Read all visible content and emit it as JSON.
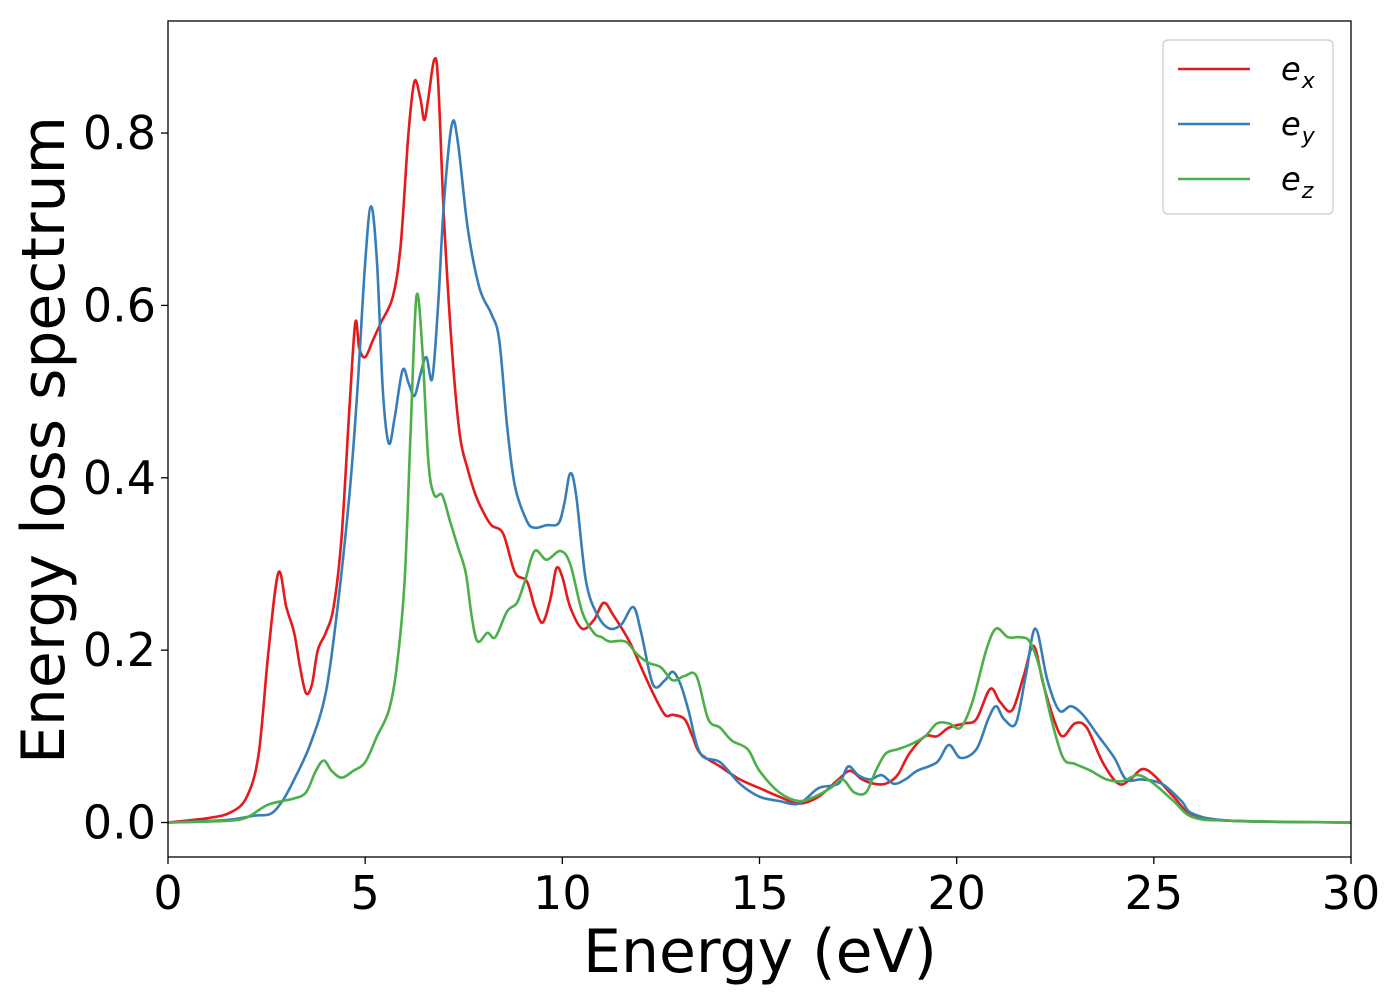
{
  "chart_data": {
    "type": "line",
    "title": "",
    "xlabel": "Energy (eV)",
    "ylabel": "Energy loss spectrum",
    "xlim": [
      0,
      30
    ],
    "ylim": [
      -0.04,
      0.93
    ],
    "xticks": [
      0,
      5,
      10,
      15,
      20,
      25,
      30
    ],
    "yticks": [
      0.0,
      0.2,
      0.4,
      0.6,
      0.8
    ],
    "xtick_labels": [
      "0",
      "5",
      "10",
      "15",
      "20",
      "25",
      "30"
    ],
    "ytick_labels": [
      "0.0",
      "0.2",
      "0.4",
      "0.6",
      "0.8"
    ],
    "grid": false,
    "legend_position": "top-right",
    "series": [
      {
        "name": "e",
        "subscript": "x",
        "color": "#e41a1c",
        "points": [
          [
            0,
            0.0
          ],
          [
            1.0,
            0.005
          ],
          [
            1.6,
            0.012
          ],
          [
            2.0,
            0.03
          ],
          [
            2.3,
            0.08
          ],
          [
            2.55,
            0.2
          ],
          [
            2.8,
            0.29
          ],
          [
            3.0,
            0.25
          ],
          [
            3.2,
            0.22
          ],
          [
            3.35,
            0.18
          ],
          [
            3.5,
            0.15
          ],
          [
            3.65,
            0.16
          ],
          [
            3.8,
            0.2
          ],
          [
            4.0,
            0.22
          ],
          [
            4.2,
            0.25
          ],
          [
            4.4,
            0.33
          ],
          [
            4.6,
            0.48
          ],
          [
            4.75,
            0.58
          ],
          [
            4.85,
            0.55
          ],
          [
            5.0,
            0.54
          ],
          [
            5.2,
            0.56
          ],
          [
            5.4,
            0.58
          ],
          [
            5.7,
            0.61
          ],
          [
            5.9,
            0.67
          ],
          [
            6.1,
            0.8
          ],
          [
            6.25,
            0.86
          ],
          [
            6.4,
            0.84
          ],
          [
            6.5,
            0.815
          ],
          [
            6.6,
            0.84
          ],
          [
            6.75,
            0.885
          ],
          [
            6.85,
            0.86
          ],
          [
            7.0,
            0.7
          ],
          [
            7.2,
            0.55
          ],
          [
            7.4,
            0.45
          ],
          [
            7.6,
            0.41
          ],
          [
            7.8,
            0.38
          ],
          [
            8.0,
            0.36
          ],
          [
            8.2,
            0.345
          ],
          [
            8.5,
            0.335
          ],
          [
            8.8,
            0.29
          ],
          [
            9.1,
            0.28
          ],
          [
            9.3,
            0.25
          ],
          [
            9.5,
            0.232
          ],
          [
            9.7,
            0.26
          ],
          [
            9.85,
            0.295
          ],
          [
            10.0,
            0.285
          ],
          [
            10.2,
            0.25
          ],
          [
            10.5,
            0.225
          ],
          [
            10.8,
            0.235
          ],
          [
            11.05,
            0.255
          ],
          [
            11.3,
            0.24
          ],
          [
            11.7,
            0.21
          ],
          [
            12.0,
            0.18
          ],
          [
            12.3,
            0.15
          ],
          [
            12.6,
            0.125
          ],
          [
            12.8,
            0.125
          ],
          [
            13.1,
            0.12
          ],
          [
            13.3,
            0.1
          ],
          [
            13.5,
            0.08
          ],
          [
            14.0,
            0.065
          ],
          [
            14.5,
            0.05
          ],
          [
            15.0,
            0.04
          ],
          [
            15.5,
            0.03
          ],
          [
            16.0,
            0.022
          ],
          [
            16.5,
            0.03
          ],
          [
            17.0,
            0.05
          ],
          [
            17.3,
            0.06
          ],
          [
            17.6,
            0.05
          ],
          [
            17.9,
            0.045
          ],
          [
            18.2,
            0.045
          ],
          [
            18.5,
            0.055
          ],
          [
            18.8,
            0.08
          ],
          [
            19.2,
            0.1
          ],
          [
            19.5,
            0.1
          ],
          [
            19.8,
            0.11
          ],
          [
            20.2,
            0.115
          ],
          [
            20.5,
            0.12
          ],
          [
            20.85,
            0.155
          ],
          [
            21.1,
            0.14
          ],
          [
            21.4,
            0.13
          ],
          [
            21.7,
            0.17
          ],
          [
            21.95,
            0.205
          ],
          [
            22.2,
            0.16
          ],
          [
            22.5,
            0.115
          ],
          [
            22.7,
            0.1
          ],
          [
            23.0,
            0.115
          ],
          [
            23.3,
            0.11
          ],
          [
            23.7,
            0.07
          ],
          [
            24.1,
            0.045
          ],
          [
            24.4,
            0.05
          ],
          [
            24.7,
            0.062
          ],
          [
            25.0,
            0.055
          ],
          [
            25.5,
            0.03
          ],
          [
            26.0,
            0.008
          ],
          [
            27.0,
            0.002
          ],
          [
            30.0,
            0.0
          ]
        ]
      },
      {
        "name": "e",
        "subscript": "y",
        "color": "#377eb8",
        "points": [
          [
            0,
            0.0
          ],
          [
            1.5,
            0.003
          ],
          [
            2.2,
            0.008
          ],
          [
            2.6,
            0.01
          ],
          [
            2.9,
            0.025
          ],
          [
            3.2,
            0.05
          ],
          [
            3.6,
            0.09
          ],
          [
            4.0,
            0.15
          ],
          [
            4.3,
            0.25
          ],
          [
            4.6,
            0.38
          ],
          [
            4.8,
            0.5
          ],
          [
            5.0,
            0.65
          ],
          [
            5.15,
            0.715
          ],
          [
            5.3,
            0.65
          ],
          [
            5.45,
            0.5
          ],
          [
            5.6,
            0.44
          ],
          [
            5.75,
            0.47
          ],
          [
            5.95,
            0.525
          ],
          [
            6.1,
            0.51
          ],
          [
            6.25,
            0.495
          ],
          [
            6.4,
            0.52
          ],
          [
            6.55,
            0.54
          ],
          [
            6.7,
            0.515
          ],
          [
            6.85,
            0.6
          ],
          [
            7.0,
            0.72
          ],
          [
            7.2,
            0.81
          ],
          [
            7.35,
            0.79
          ],
          [
            7.6,
            0.69
          ],
          [
            7.9,
            0.62
          ],
          [
            8.2,
            0.59
          ],
          [
            8.4,
            0.56
          ],
          [
            8.6,
            0.46
          ],
          [
            8.8,
            0.39
          ],
          [
            9.1,
            0.35
          ],
          [
            9.3,
            0.342
          ],
          [
            9.6,
            0.345
          ],
          [
            9.9,
            0.347
          ],
          [
            10.05,
            0.37
          ],
          [
            10.2,
            0.405
          ],
          [
            10.35,
            0.38
          ],
          [
            10.6,
            0.28
          ],
          [
            10.9,
            0.24
          ],
          [
            11.2,
            0.225
          ],
          [
            11.5,
            0.23
          ],
          [
            11.8,
            0.25
          ],
          [
            12.0,
            0.22
          ],
          [
            12.3,
            0.16
          ],
          [
            12.6,
            0.165
          ],
          [
            12.8,
            0.175
          ],
          [
            13.0,
            0.16
          ],
          [
            13.2,
            0.13
          ],
          [
            13.5,
            0.08
          ],
          [
            14.0,
            0.07
          ],
          [
            14.5,
            0.045
          ],
          [
            15.0,
            0.03
          ],
          [
            15.5,
            0.025
          ],
          [
            16.0,
            0.022
          ],
          [
            16.5,
            0.04
          ],
          [
            17.0,
            0.045
          ],
          [
            17.25,
            0.065
          ],
          [
            17.5,
            0.055
          ],
          [
            17.8,
            0.05
          ],
          [
            18.1,
            0.055
          ],
          [
            18.4,
            0.045
          ],
          [
            18.7,
            0.05
          ],
          [
            19.0,
            0.06
          ],
          [
            19.5,
            0.07
          ],
          [
            19.8,
            0.09
          ],
          [
            20.1,
            0.075
          ],
          [
            20.5,
            0.085
          ],
          [
            20.8,
            0.12
          ],
          [
            21.0,
            0.135
          ],
          [
            21.2,
            0.12
          ],
          [
            21.5,
            0.115
          ],
          [
            21.75,
            0.17
          ],
          [
            22.0,
            0.225
          ],
          [
            22.3,
            0.165
          ],
          [
            22.6,
            0.13
          ],
          [
            22.9,
            0.135
          ],
          [
            23.2,
            0.125
          ],
          [
            23.6,
            0.1
          ],
          [
            24.0,
            0.075
          ],
          [
            24.3,
            0.05
          ],
          [
            24.7,
            0.05
          ],
          [
            25.2,
            0.045
          ],
          [
            25.7,
            0.025
          ],
          [
            26.0,
            0.01
          ],
          [
            27.0,
            0.002
          ],
          [
            30.0,
            0.0
          ]
        ]
      },
      {
        "name": "e",
        "subscript": "z",
        "color": "#4daf4a",
        "points": [
          [
            0,
            0.0
          ],
          [
            1.5,
            0.002
          ],
          [
            2.0,
            0.006
          ],
          [
            2.5,
            0.02
          ],
          [
            2.9,
            0.025
          ],
          [
            3.2,
            0.028
          ],
          [
            3.5,
            0.035
          ],
          [
            3.75,
            0.06
          ],
          [
            3.95,
            0.072
          ],
          [
            4.15,
            0.06
          ],
          [
            4.4,
            0.052
          ],
          [
            4.7,
            0.06
          ],
          [
            5.0,
            0.07
          ],
          [
            5.3,
            0.1
          ],
          [
            5.6,
            0.13
          ],
          [
            5.8,
            0.18
          ],
          [
            6.0,
            0.28
          ],
          [
            6.15,
            0.45
          ],
          [
            6.3,
            0.61
          ],
          [
            6.45,
            0.55
          ],
          [
            6.6,
            0.42
          ],
          [
            6.75,
            0.38
          ],
          [
            6.95,
            0.38
          ],
          [
            7.15,
            0.35
          ],
          [
            7.35,
            0.32
          ],
          [
            7.55,
            0.29
          ],
          [
            7.7,
            0.24
          ],
          [
            7.85,
            0.21
          ],
          [
            8.1,
            0.22
          ],
          [
            8.3,
            0.215
          ],
          [
            8.6,
            0.245
          ],
          [
            8.85,
            0.255
          ],
          [
            9.05,
            0.28
          ],
          [
            9.3,
            0.315
          ],
          [
            9.6,
            0.305
          ],
          [
            9.95,
            0.315
          ],
          [
            10.2,
            0.3
          ],
          [
            10.5,
            0.245
          ],
          [
            10.8,
            0.22
          ],
          [
            11.0,
            0.215
          ],
          [
            11.2,
            0.21
          ],
          [
            11.6,
            0.21
          ],
          [
            11.9,
            0.195
          ],
          [
            12.2,
            0.185
          ],
          [
            12.5,
            0.18
          ],
          [
            12.8,
            0.165
          ],
          [
            13.1,
            0.17
          ],
          [
            13.4,
            0.17
          ],
          [
            13.7,
            0.12
          ],
          [
            14.0,
            0.11
          ],
          [
            14.3,
            0.095
          ],
          [
            14.7,
            0.085
          ],
          [
            15.0,
            0.06
          ],
          [
            15.5,
            0.035
          ],
          [
            16.0,
            0.025
          ],
          [
            16.4,
            0.03
          ],
          [
            16.8,
            0.04
          ],
          [
            17.1,
            0.05
          ],
          [
            17.4,
            0.035
          ],
          [
            17.7,
            0.035
          ],
          [
            17.95,
            0.06
          ],
          [
            18.2,
            0.08
          ],
          [
            18.5,
            0.085
          ],
          [
            18.8,
            0.09
          ],
          [
            19.2,
            0.1
          ],
          [
            19.5,
            0.115
          ],
          [
            19.8,
            0.115
          ],
          [
            20.1,
            0.11
          ],
          [
            20.4,
            0.14
          ],
          [
            20.75,
            0.2
          ],
          [
            21.0,
            0.225
          ],
          [
            21.3,
            0.215
          ],
          [
            21.6,
            0.215
          ],
          [
            21.85,
            0.21
          ],
          [
            22.1,
            0.18
          ],
          [
            22.4,
            0.12
          ],
          [
            22.7,
            0.075
          ],
          [
            23.0,
            0.068
          ],
          [
            23.4,
            0.06
          ],
          [
            23.8,
            0.05
          ],
          [
            24.2,
            0.048
          ],
          [
            24.6,
            0.055
          ],
          [
            25.0,
            0.045
          ],
          [
            25.5,
            0.025
          ],
          [
            26.0,
            0.006
          ],
          [
            27.0,
            0.002
          ],
          [
            30.0,
            0.0
          ]
        ]
      }
    ]
  }
}
